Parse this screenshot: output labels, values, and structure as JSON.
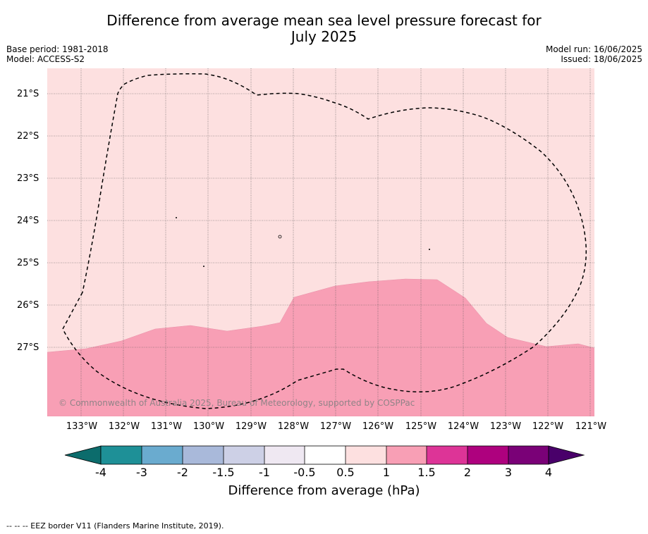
{
  "title_line1": "Difference from average mean sea level pressure forecast for",
  "title_line2": "July 2025",
  "base_period": "Base period: 1981-2018",
  "model": "Model: ACCESS-S2",
  "model_run": "Model run: 16/06/2025",
  "issued": "Issued: 18/06/2025",
  "copyright": "© Commonwealth of Australia 2025, Bureau of Meteorology, supported by COSPPac",
  "lat_labels": [
    "21°S",
    "22°S",
    "23°S",
    "24°S",
    "25°S",
    "26°S",
    "27°S"
  ],
  "lon_labels": [
    "133°W",
    "132°W",
    "131°W",
    "130°W",
    "129°W",
    "128°W",
    "127°W",
    "126°W",
    "125°W",
    "124°W",
    "123°W",
    "122°W",
    "121°W"
  ],
  "colorbar": {
    "labels": [
      "-4",
      "-3",
      "-2",
      "-1.5",
      "-1",
      "-0.5",
      "0.5",
      "1",
      "1.5",
      "2",
      "3",
      "4"
    ],
    "colors": [
      "#0c6c6c",
      "#1e9097",
      "#6aabcf",
      "#a9b9da",
      "#cdd0e6",
      "#efe8f2",
      "#ffffff",
      "#fde0e0",
      "#f89fb5",
      "#dd3497",
      "#ae017e",
      "#7a0177",
      "#49006a"
    ],
    "title": "Difference from average (hPa)"
  },
  "map_colors": {
    "band_0.5_1": "#fde0e0",
    "band_1_1.5": "#f89fb5"
  },
  "footer": "--  --  -- EEZ border V11 (Flanders Marine Institute, 2019)."
}
